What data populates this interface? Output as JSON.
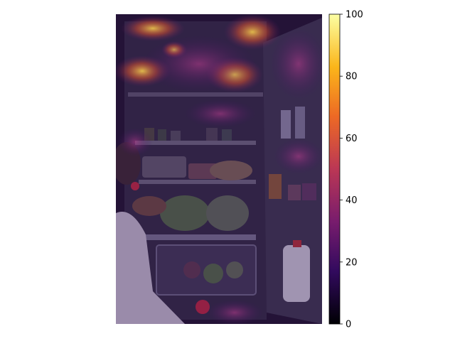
{
  "image": {
    "description_kind": "photo-with-heatmap-overlay"
  },
  "colorbar": {
    "colormap": "inferno",
    "min": 0,
    "max": 100,
    "ticks": [
      "0",
      "20",
      "40",
      "60",
      "80",
      "100"
    ],
    "tick_values": [
      0,
      20,
      40,
      60,
      80,
      100
    ],
    "colors": [
      "#000004",
      "#320a5e",
      "#781c6d",
      "#bb3755",
      "#ed6925",
      "#fbb61a",
      "#fcffa4"
    ]
  }
}
